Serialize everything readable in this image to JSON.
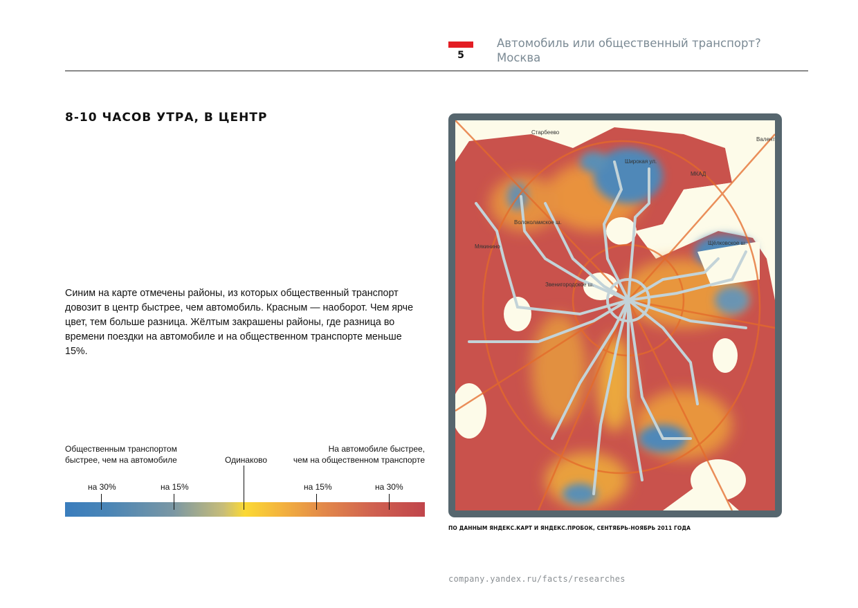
{
  "header": {
    "page_number": "5",
    "title_line1": "Автомобиль или общественный транспорт?",
    "title_line2": "Москва",
    "accent_color": "#e31e24"
  },
  "section": {
    "heading": "8-10 ЧАСОВ УТРА, В ЦЕНТР",
    "description": "Синим на карте отмечены районы, из которых общественный транспорт довозит в центр быстрее, чем автомобиль. Красным — наоборот. Чем ярче цвет, тем больше разница. Жёлтым закрашены районы, где разница во времени поездки на автомобиле и на общественном транспорте меньше 15%."
  },
  "legend": {
    "left_line1": "Общественным транспортом",
    "left_line2": "быстрее, чем на автомобиле",
    "middle": "Одинаково",
    "right_line1": "На автомобиле быстрее,",
    "right_line2": "чем на общественном транспорте",
    "ticks": [
      "на 30%",
      "на 15%",
      "на 15%",
      "на 30%"
    ],
    "colors": {
      "public_faster": "#3a7dbd",
      "equal": "#fbd934",
      "car_faster": "#c0454b"
    }
  },
  "map": {
    "labels": [
      "Старбеево",
      "Валенти",
      "Широкая ул.",
      "МКАД",
      "Мякинино",
      "Щёлковское ш.",
      "Звенигородское ш.",
      "Волоколамское ш."
    ]
  },
  "footer": {
    "source": "ПО ДАННЫМ ЯНДЕКС.КАРТ И ЯНДЕКС.ПРОБОК, СЕНТЯБРЬ-НОЯБРЬ 2011 ГОДА",
    "url": "company.yandex.ru/facts/researches"
  }
}
